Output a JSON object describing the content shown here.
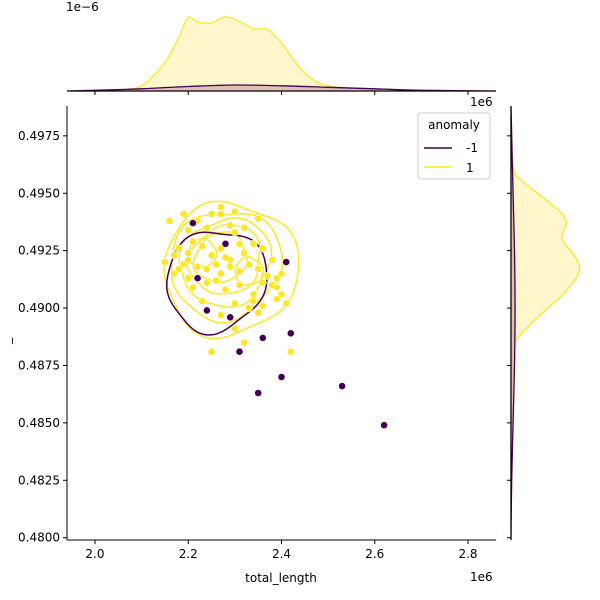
{
  "chart_data": {
    "type": "scatter",
    "xlabel": "total_length",
    "ylabel": "_",
    "x_offset_label": "1e6",
    "y_offset_label": "1e6",
    "top_marginal_offset_label": "1e−6",
    "xlim": [
      1.94,
      2.86
    ],
    "ylim": [
      0.4799,
      0.4988
    ],
    "x_ticks": [
      2.0,
      2.2,
      2.4,
      2.6,
      2.8
    ],
    "x_tick_labels": [
      "2.0",
      "2.2",
      "2.4",
      "2.6",
      "2.8"
    ],
    "y_ticks": [
      0.48,
      0.4825,
      0.485,
      0.4875,
      0.49,
      0.4925,
      0.495,
      0.4975
    ],
    "y_tick_labels": [
      "0.4800",
      "0.4825",
      "0.4850",
      "0.4875",
      "0.4900",
      "0.4925",
      "0.4950",
      "0.4975"
    ],
    "grid": false,
    "legend": {
      "title": "anomaly",
      "placement": "top-right",
      "entries": [
        {
          "label": "-1",
          "color": "#440154"
        },
        {
          "label": "1",
          "color": "#fde725"
        }
      ]
    },
    "series": [
      {
        "name": "-1",
        "color": "#440154",
        "points": [
          [
            2.21,
            0.4937
          ],
          [
            2.28,
            0.4928
          ],
          [
            2.41,
            0.492
          ],
          [
            2.22,
            0.4913
          ],
          [
            2.24,
            0.4899
          ],
          [
            2.29,
            0.4896
          ],
          [
            2.36,
            0.4887
          ],
          [
            2.42,
            0.4889
          ],
          [
            2.31,
            0.4881
          ],
          [
            2.4,
            0.487
          ],
          [
            2.35,
            0.4863
          ],
          [
            2.53,
            0.4866
          ],
          [
            2.62,
            0.4849
          ]
        ]
      },
      {
        "name": "1",
        "color": "#fde725",
        "points": [
          [
            2.16,
            0.4938
          ],
          [
            2.19,
            0.4941
          ],
          [
            2.2,
            0.4934
          ],
          [
            2.22,
            0.4938
          ],
          [
            2.24,
            0.4935
          ],
          [
            2.27,
            0.4941
          ],
          [
            2.27,
            0.4944
          ],
          [
            2.29,
            0.4936
          ],
          [
            2.3,
            0.4933
          ],
          [
            2.35,
            0.4939
          ],
          [
            2.18,
            0.4926
          ],
          [
            2.2,
            0.4924
          ],
          [
            2.21,
            0.4929
          ],
          [
            2.23,
            0.4927
          ],
          [
            2.25,
            0.4923
          ],
          [
            2.27,
            0.4926
          ],
          [
            2.29,
            0.4921
          ],
          [
            2.31,
            0.4928
          ],
          [
            2.32,
            0.4924
          ],
          [
            2.34,
            0.4928
          ],
          [
            2.36,
            0.4926
          ],
          [
            2.15,
            0.492
          ],
          [
            2.17,
            0.4915
          ],
          [
            2.19,
            0.4919
          ],
          [
            2.2,
            0.4921
          ],
          [
            2.22,
            0.4918
          ],
          [
            2.24,
            0.4917
          ],
          [
            2.26,
            0.4919
          ],
          [
            2.27,
            0.4915
          ],
          [
            2.29,
            0.4918
          ],
          [
            2.31,
            0.4916
          ],
          [
            2.33,
            0.4919
          ],
          [
            2.35,
            0.4917
          ],
          [
            2.37,
            0.4914
          ],
          [
            2.39,
            0.4913
          ],
          [
            2.4,
            0.4915
          ],
          [
            2.21,
            0.4909
          ],
          [
            2.24,
            0.4911
          ],
          [
            2.28,
            0.4908
          ],
          [
            2.31,
            0.491
          ],
          [
            2.34,
            0.4906
          ],
          [
            2.36,
            0.4911
          ],
          [
            2.38,
            0.491
          ],
          [
            2.4,
            0.4906
          ],
          [
            2.23,
            0.4903
          ],
          [
            2.3,
            0.4902
          ],
          [
            2.34,
            0.4903
          ],
          [
            2.36,
            0.4901
          ],
          [
            2.39,
            0.4904
          ],
          [
            2.41,
            0.4902
          ],
          [
            2.27,
            0.4897
          ],
          [
            2.33,
            0.49
          ],
          [
            2.35,
            0.4898
          ],
          [
            2.3,
            0.4891
          ],
          [
            2.25,
            0.4881
          ],
          [
            2.32,
            0.4885
          ],
          [
            2.42,
            0.4881
          ],
          [
            2.18,
            0.4917
          ],
          [
            2.2,
            0.4913
          ],
          [
            2.26,
            0.4912
          ],
          [
            2.28,
            0.4922
          ],
          [
            2.38,
            0.4921
          ],
          [
            2.39,
            0.4909
          ],
          [
            2.3,
            0.4942
          ],
          [
            2.25,
            0.4941
          ],
          [
            2.32,
            0.4935
          ],
          [
            2.17,
            0.4923
          ]
        ]
      }
    ],
    "contours": [
      {
        "series": "1",
        "color": "#fde725",
        "levels": [
          {
            "cx": 2.29,
            "cy": 0.4917,
            "rx": 0.146,
            "ry": 0.00285,
            "rot": 35
          },
          {
            "cx": 2.28,
            "cy": 0.4919,
            "rx": 0.122,
            "ry": 0.0023,
            "rot": 35
          },
          {
            "cx": 2.28,
            "cy": 0.492,
            "rx": 0.1,
            "ry": 0.00185,
            "rot": 35
          },
          {
            "cx": 2.28,
            "cy": 0.4921,
            "rx": 0.08,
            "ry": 0.00145,
            "rot": 35
          },
          {
            "cx": 2.27,
            "cy": 0.4922,
            "rx": 0.058,
            "ry": 0.00105,
            "rot": 35
          },
          {
            "cx": 2.23,
            "cy": 0.4924,
            "rx": 0.03,
            "ry": 0.0006,
            "rot": 30
          },
          {
            "cx": 2.33,
            "cy": 0.4916,
            "rx": 0.03,
            "ry": 0.0006,
            "rot": 30
          }
        ]
      },
      {
        "series": "-1",
        "color": "#440154",
        "levels": [
          {
            "cx": 2.26,
            "cy": 0.4912,
            "rx": 0.112,
            "ry": 0.0021,
            "rot": 48
          }
        ]
      }
    ],
    "marginal_x": {
      "series": [
        {
          "name": "1",
          "color": "#fde725",
          "fill": "#fff5c2",
          "x": [
            1.94,
            2.0,
            2.05,
            2.1,
            2.15,
            2.18,
            2.2,
            2.22,
            2.25,
            2.28,
            2.31,
            2.34,
            2.37,
            2.4,
            2.45,
            2.5,
            2.6,
            2.7,
            2.86
          ],
          "density": [
            0.0,
            0.0,
            0.01,
            0.07,
            0.38,
            0.72,
            0.98,
            0.92,
            0.91,
            0.99,
            0.93,
            0.83,
            0.82,
            0.64,
            0.24,
            0.07,
            0.02,
            0.01,
            0.0
          ]
        },
        {
          "name": "-1",
          "color": "#440154",
          "fill": "#d8b8b0",
          "x": [
            1.94,
            2.0,
            2.1,
            2.2,
            2.3,
            2.4,
            2.5,
            2.6,
            2.7,
            2.86
          ],
          "density": [
            0.0,
            0.01,
            0.03,
            0.06,
            0.08,
            0.07,
            0.05,
            0.03,
            0.01,
            0.0
          ]
        }
      ]
    },
    "marginal_y": {
      "series": [
        {
          "name": "1",
          "color": "#fde725",
          "fill": "#fff5c2",
          "y": [
            0.4799,
            0.486,
            0.4875,
            0.4885,
            0.4895,
            0.4905,
            0.4915,
            0.4922,
            0.493,
            0.4938,
            0.4945,
            0.4955,
            0.4962,
            0.4988
          ],
          "density": [
            0.0,
            0.0,
            0.01,
            0.06,
            0.35,
            0.72,
            0.98,
            0.94,
            0.74,
            0.8,
            0.6,
            0.18,
            0.03,
            0.0
          ]
        },
        {
          "name": "-1",
          "color": "#440154",
          "fill": "#d8b8b0",
          "y": [
            0.4799,
            0.4825,
            0.485,
            0.4875,
            0.49,
            0.4925,
            0.495,
            0.4975,
            0.4988
          ],
          "density": [
            0.0,
            0.01,
            0.03,
            0.05,
            0.06,
            0.05,
            0.03,
            0.01,
            0.0
          ]
        }
      ]
    }
  }
}
